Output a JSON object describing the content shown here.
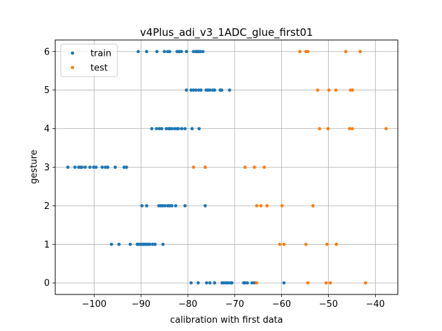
{
  "chart_data": {
    "type": "scatter",
    "title": "v4Plus_adi_v3_1ADC_glue_first01",
    "xlabel": "calibration with first data",
    "ylabel": "gesture",
    "xlim": [
      -108.3,
      -35.2
    ],
    "ylim": [
      -0.3,
      6.3
    ],
    "xticks": [
      -100,
      -90,
      -80,
      -70,
      -60,
      -50,
      -40
    ],
    "xtick_labels": [
      "−100",
      "−90",
      "−80",
      "−70",
      "−60",
      "−50",
      "−40"
    ],
    "yticks": [
      0,
      1,
      2,
      3,
      4,
      5,
      6
    ],
    "ytick_labels": [
      "0",
      "1",
      "2",
      "3",
      "4",
      "5",
      "6"
    ],
    "grid": true,
    "legend_position": "top-left",
    "series": [
      {
        "name": "train",
        "color": "#1f77b4",
        "points": [
          [
            -90.6,
            6
          ],
          [
            -88.8,
            6
          ],
          [
            -86.6,
            6
          ],
          [
            -85.0,
            6
          ],
          [
            -84.3,
            6
          ],
          [
            -83.9,
            6
          ],
          [
            -82.3,
            6
          ],
          [
            -81.8,
            6
          ],
          [
            -81.4,
            6
          ],
          [
            -80.3,
            6
          ],
          [
            -78.8,
            6
          ],
          [
            -78.3,
            6
          ],
          [
            -78.0,
            6
          ],
          [
            -77.7,
            6
          ],
          [
            -77.3,
            6
          ],
          [
            -76.8,
            6
          ],
          [
            -80.3,
            5
          ],
          [
            -79.3,
            5
          ],
          [
            -78.8,
            5
          ],
          [
            -78.3,
            5
          ],
          [
            -77.7,
            5
          ],
          [
            -77.2,
            5
          ],
          [
            -76.1,
            5
          ],
          [
            -75.7,
            5
          ],
          [
            -75.3,
            5
          ],
          [
            -74.7,
            5
          ],
          [
            -74.3,
            5
          ],
          [
            -73.1,
            5
          ],
          [
            -72.8,
            5
          ],
          [
            -71.1,
            5
          ],
          [
            -87.7,
            4
          ],
          [
            -86.7,
            4
          ],
          [
            -86.1,
            4
          ],
          [
            -85.6,
            4
          ],
          [
            -84.6,
            4
          ],
          [
            -84.1,
            4
          ],
          [
            -83.8,
            4
          ],
          [
            -83.4,
            4
          ],
          [
            -82.8,
            4
          ],
          [
            -82.3,
            4
          ],
          [
            -82.0,
            4
          ],
          [
            -81.3,
            4
          ],
          [
            -80.6,
            4
          ],
          [
            -79.1,
            4
          ],
          [
            -77.6,
            4
          ],
          [
            -105.6,
            3
          ],
          [
            -104.1,
            3
          ],
          [
            -103.3,
            3
          ],
          [
            -102.9,
            3
          ],
          [
            -102.6,
            3
          ],
          [
            -101.9,
            3
          ],
          [
            -100.9,
            3
          ],
          [
            -100.1,
            3
          ],
          [
            -99.6,
            3
          ],
          [
            -98.3,
            3
          ],
          [
            -97.6,
            3
          ],
          [
            -97.1,
            3
          ],
          [
            -95.5,
            3
          ],
          [
            -93.6,
            3
          ],
          [
            -93.1,
            3
          ],
          [
            -89.8,
            2
          ],
          [
            -88.8,
            2
          ],
          [
            -86.2,
            2
          ],
          [
            -85.8,
            2
          ],
          [
            -85.4,
            2
          ],
          [
            -84.9,
            2
          ],
          [
            -84.3,
            2
          ],
          [
            -83.9,
            2
          ],
          [
            -83.4,
            2
          ],
          [
            -82.6,
            2
          ],
          [
            -80.6,
            2
          ],
          [
            -76.3,
            2
          ],
          [
            -96.3,
            1
          ],
          [
            -94.7,
            1
          ],
          [
            -92.3,
            1
          ],
          [
            -90.8,
            1
          ],
          [
            -90.4,
            1
          ],
          [
            -90.0,
            1
          ],
          [
            -89.6,
            1
          ],
          [
            -89.3,
            1
          ],
          [
            -88.9,
            1
          ],
          [
            -88.5,
            1
          ],
          [
            -88.1,
            1
          ],
          [
            -87.5,
            1
          ],
          [
            -87.0,
            1
          ],
          [
            -85.3,
            1
          ],
          [
            -79.3,
            0
          ],
          [
            -77.8,
            0
          ],
          [
            -76.0,
            0
          ],
          [
            -75.3,
            0
          ],
          [
            -74.3,
            0
          ],
          [
            -72.7,
            0
          ],
          [
            -72.3,
            0
          ],
          [
            -71.8,
            0
          ],
          [
            -71.4,
            0
          ],
          [
            -70.9,
            0
          ],
          [
            -70.6,
            0
          ],
          [
            -68.1,
            0
          ],
          [
            -67.8,
            0
          ],
          [
            -67.3,
            0
          ],
          [
            -66.3,
            0
          ],
          [
            -65.8,
            0
          ],
          [
            -59.5,
            0
          ]
        ]
      },
      {
        "name": "test",
        "color": "#ff7f0e",
        "points": [
          [
            -56.1,
            6
          ],
          [
            -54.8,
            6
          ],
          [
            -54.4,
            6
          ],
          [
            -46.3,
            6
          ],
          [
            -43.2,
            6
          ],
          [
            -52.3,
            5
          ],
          [
            -49.9,
            5
          ],
          [
            -48.4,
            5
          ],
          [
            -45.3,
            5
          ],
          [
            -44.9,
            5
          ],
          [
            -51.9,
            4
          ],
          [
            -50.1,
            4
          ],
          [
            -45.5,
            4
          ],
          [
            -44.9,
            4
          ],
          [
            -37.7,
            4
          ],
          [
            -78.8,
            3
          ],
          [
            -76.3,
            3
          ],
          [
            -67.8,
            3
          ],
          [
            -65.8,
            3
          ],
          [
            -63.7,
            3
          ],
          [
            -65.3,
            2
          ],
          [
            -64.4,
            2
          ],
          [
            -63.1,
            2
          ],
          [
            -59.9,
            2
          ],
          [
            -53.3,
            2
          ],
          [
            -60.4,
            1
          ],
          [
            -59.5,
            1
          ],
          [
            -54.8,
            1
          ],
          [
            -50.3,
            1
          ],
          [
            -48.3,
            1
          ],
          [
            -65.3,
            0
          ],
          [
            -54.4,
            0
          ],
          [
            -50.5,
            0
          ],
          [
            -49.6,
            0
          ],
          [
            -42.1,
            0
          ]
        ]
      }
    ]
  }
}
